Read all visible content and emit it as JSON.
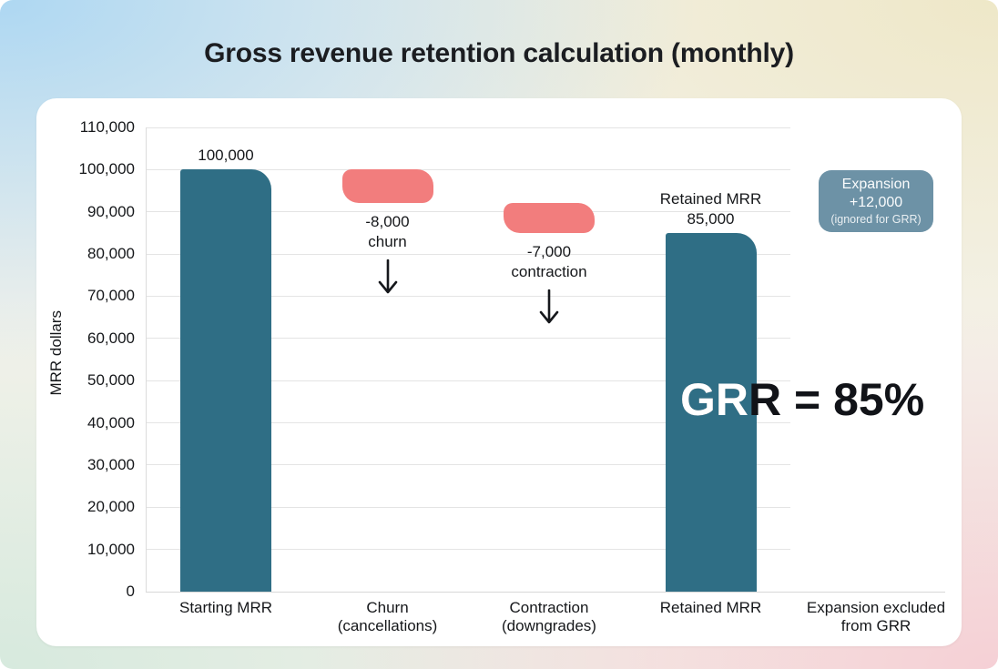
{
  "page": {
    "title": "Gross revenue retention calculation (monthly)"
  },
  "chart_data": {
    "type": "bar",
    "subtype": "waterfall",
    "title": "Gross revenue retention calculation (monthly)",
    "ylabel": "MRR dollars",
    "ylim": [
      0,
      110000
    ],
    "ytick_step": 10000,
    "grid": "horizontal",
    "legend": "none",
    "yticks": [
      {
        "value": 0,
        "label": "0"
      },
      {
        "value": 10000,
        "label": "10,000"
      },
      {
        "value": 20000,
        "label": "20,000"
      },
      {
        "value": 30000,
        "label": "30,000"
      },
      {
        "value": 40000,
        "label": "40,000"
      },
      {
        "value": 50000,
        "label": "50,000"
      },
      {
        "value": 60000,
        "label": "60,000"
      },
      {
        "value": 70000,
        "label": "70,000"
      },
      {
        "value": 80000,
        "label": "80,000"
      },
      {
        "value": 90000,
        "label": "90,000"
      },
      {
        "value": 100000,
        "label": "100,000"
      },
      {
        "value": 110000,
        "label": "110,000"
      }
    ],
    "categories": [
      {
        "label_lines": [
          "Starting MRR"
        ]
      },
      {
        "label_lines": [
          "Churn",
          "(cancellations)"
        ]
      },
      {
        "label_lines": [
          "Contraction",
          "(downgrades)"
        ]
      },
      {
        "label_lines": [
          "Retained MRR"
        ]
      },
      {
        "label_lines": [
          "Expansion excluded",
          "from GRR"
        ]
      }
    ],
    "bars": [
      {
        "category": "Starting MRR",
        "kind": "column",
        "from": 0,
        "to": 100000,
        "color": "#2f6e85",
        "label_above_lines": [
          "100,000"
        ]
      },
      {
        "category": "Churn (cancellations)",
        "kind": "floating",
        "from": 100000,
        "to": 92000,
        "color": "#f27d7d",
        "label_below_lines": [
          "-8,000",
          "churn"
        ],
        "arrow_below": true
      },
      {
        "category": "Contraction (downgrades)",
        "kind": "floating",
        "from": 92000,
        "to": 85000,
        "color": "#f27d7d",
        "label_below_lines": [
          "-7,000",
          "contraction"
        ],
        "arrow_below": true
      },
      {
        "category": "Retained MRR",
        "kind": "column",
        "from": 0,
        "to": 85000,
        "color": "#2f6e85",
        "label_above_lines": [
          "Retained MRR",
          "85,000"
        ]
      },
      {
        "category": "Expansion excluded from GRR",
        "kind": "badge",
        "badge_lines": [
          "Expansion",
          "+12,000",
          "(ignored for GRR)"
        ],
        "color": "#6d92a6"
      }
    ],
    "big_annotation": {
      "text": "GRR = 85%"
    },
    "colors": {
      "bar_teal": "#2f6e85",
      "bar_pink": "#f27d7d",
      "badge": "#6d92a6",
      "grid": "#e4e4e4",
      "axis": "#d7d7d7",
      "text": "#15171a"
    }
  }
}
